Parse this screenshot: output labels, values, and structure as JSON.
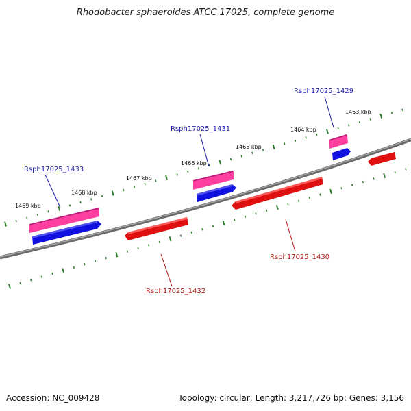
{
  "title": "Rhodobacter sphaeroides ATCC 17025, complete genome",
  "footer": {
    "accession": "Accession: NC_009428",
    "summary": "Topology: circular; Length: 3,217,726 bp; Genes: 3,156"
  },
  "colors": {
    "backbone": "#808080",
    "tick": "#2e7d2e",
    "forward_cds": "#ff3fa0",
    "forward_gene": "#1010e0",
    "reverse_cds": "#e01010",
    "forward_label": "#1a1aa8",
    "reverse_label": "#b01010"
  },
  "kbp_ticks": [
    "1463 kbp",
    "1464 kbp",
    "1465 kbp",
    "1466 kbp",
    "1467 kbp",
    "1468 kbp",
    "1469 kbp"
  ],
  "genes": {
    "g1429": "Rsph17025_1429",
    "g1430": "Rsph17025_1430",
    "g1431": "Rsph17025_1431",
    "g1432": "Rsph17025_1432",
    "g1433": "Rsph17025_1433"
  }
}
